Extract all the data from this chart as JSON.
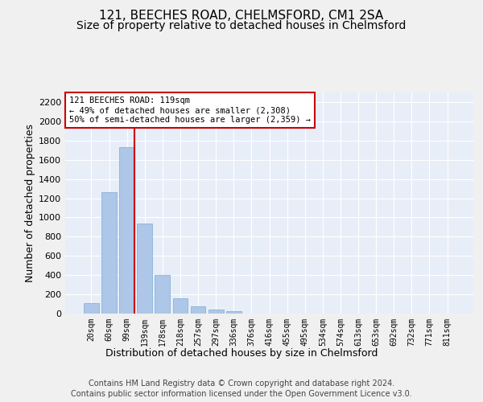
{
  "title": "121, BEECHES ROAD, CHELMSFORD, CM1 2SA",
  "subtitle": "Size of property relative to detached houses in Chelmsford",
  "xlabel": "Distribution of detached houses by size in Chelmsford",
  "ylabel": "Number of detached properties",
  "bar_color": "#aec6e8",
  "bar_edge_color": "#7aadd4",
  "background_color": "#e8eef8",
  "fig_background_color": "#f0f0f0",
  "grid_color": "#ffffff",
  "categories": [
    "20sqm",
    "60sqm",
    "99sqm",
    "139sqm",
    "178sqm",
    "218sqm",
    "257sqm",
    "297sqm",
    "336sqm",
    "376sqm",
    "416sqm",
    "455sqm",
    "495sqm",
    "534sqm",
    "574sqm",
    "613sqm",
    "653sqm",
    "692sqm",
    "732sqm",
    "771sqm",
    "811sqm"
  ],
  "values": [
    110,
    1265,
    1730,
    940,
    405,
    155,
    75,
    42,
    25,
    0,
    0,
    0,
    0,
    0,
    0,
    0,
    0,
    0,
    0,
    0,
    0
  ],
  "ylim": [
    0,
    2300
  ],
  "yticks": [
    0,
    200,
    400,
    600,
    800,
    1000,
    1200,
    1400,
    1600,
    1800,
    2000,
    2200
  ],
  "red_line_index": 2,
  "annotation_text": "121 BEECHES ROAD: 119sqm\n← 49% of detached houses are smaller (2,308)\n50% of semi-detached houses are larger (2,359) →",
  "annotation_box_color": "#ffffff",
  "annotation_border_color": "#cc0000",
  "red_line_color": "#cc0000",
  "footer_line1": "Contains HM Land Registry data © Crown copyright and database right 2024.",
  "footer_line2": "Contains public sector information licensed under the Open Government Licence v3.0.",
  "title_fontsize": 11,
  "subtitle_fontsize": 10,
  "xlabel_fontsize": 9,
  "ylabel_fontsize": 9,
  "footer_fontsize": 7
}
